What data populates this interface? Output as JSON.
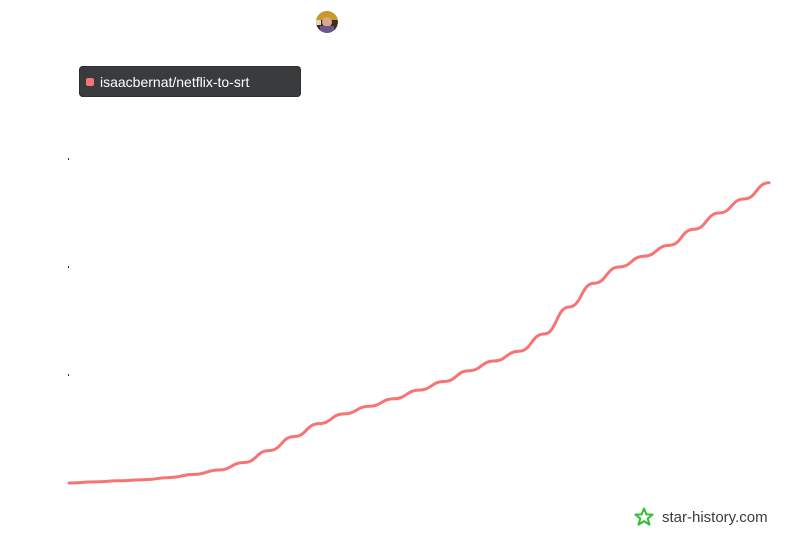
{
  "chart_data": {
    "type": "line",
    "title": "",
    "xlabel": "",
    "ylabel": "",
    "series": [
      {
        "name": "isaacbernat/netflix-to-srt",
        "color": "#f77474",
        "values": [
          0,
          0.01,
          0.02,
          0.03,
          0.05,
          0.08,
          0.12,
          0.19,
          0.3,
          0.43,
          0.55,
          0.64,
          0.71,
          0.78,
          0.86,
          0.94,
          1.04,
          1.13,
          1.22,
          1.38,
          1.63,
          1.85,
          2.0,
          2.1,
          2.2,
          2.35,
          2.5,
          2.63,
          2.78
        ]
      }
    ],
    "ylim": [
      0,
      3
    ],
    "grid": false,
    "legend_position": "top-left"
  },
  "legend": {
    "label": "isaacbernat/netflix-to-srt",
    "color": "#f77474"
  },
  "watermark": {
    "text": "star-history.com",
    "icon": "star-icon",
    "icon_color": "#2fbf2f"
  },
  "avatar": {
    "icon": "avatar-icon"
  }
}
